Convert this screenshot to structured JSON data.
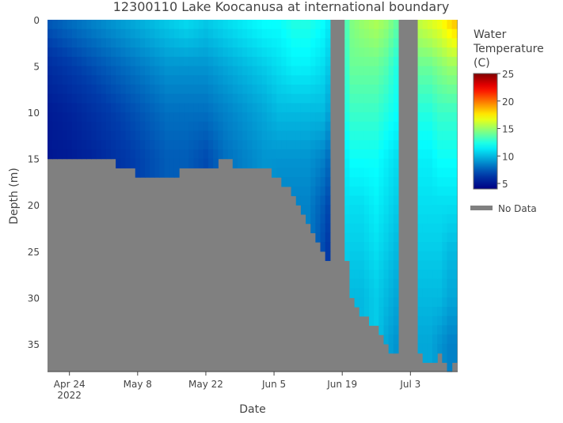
{
  "chart_data": {
    "type": "heatmap",
    "title": "12300110 Lake Koocanusa at international boundary",
    "xlabel": "Date",
    "ylabel": "Depth (m)",
    "x_ticks": [
      {
        "date": "2022-04-24",
        "label": "Apr 24",
        "sub": "2022"
      },
      {
        "date": "2022-05-08",
        "label": "May 8"
      },
      {
        "date": "2022-05-22",
        "label": "May 22"
      },
      {
        "date": "2022-06-05",
        "label": "Jun 5"
      },
      {
        "date": "2022-06-19",
        "label": "Jun 19"
      },
      {
        "date": "2022-07-03",
        "label": "Jul 3"
      }
    ],
    "xlim": [
      "2022-04-20",
      "2022-07-12"
    ],
    "y_ticks": [
      0,
      5,
      10,
      15,
      20,
      25,
      30,
      35
    ],
    "ylim": [
      38,
      0
    ],
    "y_reversed": true,
    "colorbar": {
      "title_lines": [
        "Water",
        "Temperature",
        "(C)"
      ],
      "ticks": [
        5,
        10,
        15,
        20,
        25
      ],
      "range": [
        4,
        25
      ],
      "colorscale": "Jet"
    },
    "legend": {
      "label": "No Data",
      "color": "#808080",
      "placement": "right"
    },
    "depth_levels": [
      0,
      5,
      10,
      15,
      20,
      25,
      30,
      35
    ],
    "no_data_ranges": [
      [
        "2022-06-17",
        "2022-06-19"
      ],
      [
        "2022-07-01",
        "2022-07-04"
      ]
    ],
    "profiles": [
      {
        "date": "2022-04-20",
        "bottom": 15,
        "temps": [
          7.5,
          6,
          5.2,
          5
        ]
      },
      {
        "date": "2022-04-24",
        "bottom": 15,
        "temps": [
          8,
          6.5,
          5.5,
          5.2
        ]
      },
      {
        "date": "2022-04-28",
        "bottom": 15,
        "temps": [
          8.5,
          7,
          6,
          5.5
        ]
      },
      {
        "date": "2022-05-02",
        "bottom": 15,
        "temps": [
          9,
          7.5,
          6.5,
          6
        ]
      },
      {
        "date": "2022-05-06",
        "bottom": 16,
        "temps": [
          9.5,
          8,
          7,
          6.5
        ]
      },
      {
        "date": "2022-05-10",
        "bottom": 17,
        "temps": [
          10,
          8.5,
          7.5,
          7
        ]
      },
      {
        "date": "2022-05-14",
        "bottom": 17,
        "temps": [
          10.5,
          9,
          8,
          7.5
        ]
      },
      {
        "date": "2022-05-18",
        "bottom": 16,
        "temps": [
          11,
          9,
          8,
          7.5
        ]
      },
      {
        "date": "2022-05-22",
        "bottom": 16,
        "temps": [
          10.5,
          9,
          8,
          7
        ]
      },
      {
        "date": "2022-05-26",
        "bottom": 15,
        "temps": [
          11,
          9.5,
          8.5,
          8
        ]
      },
      {
        "date": "2022-05-30",
        "bottom": 16,
        "temps": [
          11.5,
          10,
          9,
          8.5
        ]
      },
      {
        "date": "2022-06-03",
        "bottom": 16,
        "temps": [
          12,
          10.5,
          9.5,
          9
        ]
      },
      {
        "date": "2022-06-06",
        "bottom": 17,
        "temps": [
          12,
          11,
          10,
          9,
          8.5
        ]
      },
      {
        "date": "2022-06-09",
        "bottom": 19,
        "temps": [
          12.5,
          11.5,
          10,
          9,
          8.5
        ]
      },
      {
        "date": "2022-06-12",
        "bottom": 22,
        "temps": [
          12.5,
          11.5,
          10,
          9,
          8.5
        ]
      },
      {
        "date": "2022-06-15",
        "bottom": 25,
        "temps": [
          12,
          11,
          10,
          8.5,
          7.5,
          7
        ]
      },
      {
        "date": "2022-06-16",
        "bottom": 26,
        "temps": [
          11.5,
          10.5,
          9.5,
          8,
          7,
          6.5
        ]
      },
      {
        "date": "2022-06-20",
        "bottom": 26,
        "temps": [
          13.5,
          13,
          12.5,
          11.5,
          11,
          10.5
        ]
      },
      {
        "date": "2022-06-21",
        "bottom": 30,
        "temps": [
          14.5,
          14,
          13,
          12,
          11,
          10.5,
          10
        ]
      },
      {
        "date": "2022-06-23",
        "bottom": 32,
        "temps": [
          15,
          14,
          13,
          12,
          11,
          10.5,
          10
        ]
      },
      {
        "date": "2022-06-26",
        "bottom": 33,
        "temps": [
          15.5,
          14,
          13,
          12,
          11.5,
          11,
          10.5
        ]
      },
      {
        "date": "2022-06-28",
        "bottom": 35,
        "temps": [
          15,
          13.5,
          12.5,
          11.5,
          11,
          10.5,
          10,
          9.5
        ]
      },
      {
        "date": "2022-06-30",
        "bottom": 36,
        "temps": [
          14,
          12.5,
          12,
          11,
          10.5,
          10,
          9.5,
          9
        ]
      },
      {
        "date": "2022-07-05",
        "bottom": 36,
        "temps": [
          16,
          14,
          12.5,
          11.5,
          11,
          10.5,
          10,
          9.5
        ]
      },
      {
        "date": "2022-07-07",
        "bottom": 37,
        "temps": [
          16.5,
          14,
          12.5,
          11.5,
          11,
          10.5,
          10,
          9.5
        ]
      },
      {
        "date": "2022-07-09",
        "bottom": 36,
        "temps": [
          17,
          14.5,
          13,
          12,
          11,
          10.5,
          10,
          9
        ]
      },
      {
        "date": "2022-07-11",
        "bottom": 38,
        "temps": [
          18,
          15,
          13,
          12,
          11,
          10,
          9.5,
          8.5
        ]
      },
      {
        "date": "2022-07-12",
        "bottom": 37,
        "temps": [
          18.5,
          15,
          13,
          12,
          11,
          10,
          9.5,
          8.5
        ]
      }
    ]
  }
}
